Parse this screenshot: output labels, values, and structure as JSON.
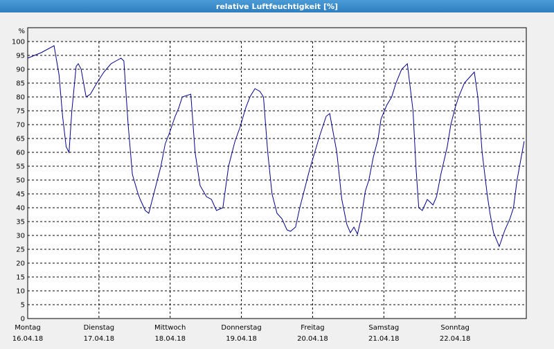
{
  "chart_data": {
    "type": "line",
    "title": "relative Luftfeuchtigkeit [%]",
    "y_label": "%",
    "xlim": [
      0,
      7
    ],
    "xticks": [
      {
        "value": 0,
        "label": "Montag",
        "date": "16.04.18"
      },
      {
        "value": 1,
        "label": "Dienstag",
        "date": "17.04.18"
      },
      {
        "value": 2,
        "label": "Mittwoch",
        "date": "18.04.18"
      },
      {
        "value": 3,
        "label": "Donnerstag",
        "date": "19.04.18"
      },
      {
        "value": 4,
        "label": "Freitag",
        "date": "20.04.18"
      },
      {
        "value": 5,
        "label": "Samstag",
        "date": "21.04.18"
      },
      {
        "value": 6,
        "label": "Sonntag",
        "date": "22.04.18"
      }
    ],
    "ylim": [
      0,
      100
    ],
    "yticks": [
      0,
      5,
      10,
      15,
      20,
      25,
      30,
      35,
      40,
      45,
      50,
      55,
      60,
      65,
      70,
      75,
      80,
      85,
      90,
      95,
      100
    ],
    "grid": true,
    "series": [
      {
        "color": "#00008b",
        "x": [
          0.0,
          0.19,
          0.37,
          0.44,
          0.49,
          0.54,
          0.58,
          0.62,
          0.68,
          0.71,
          0.75,
          0.82,
          0.88,
          0.97,
          1.07,
          1.17,
          1.31,
          1.35,
          1.41,
          1.47,
          1.55,
          1.58,
          1.65,
          1.7,
          1.77,
          1.87,
          1.93,
          1.99,
          2.07,
          2.12,
          2.17,
          2.29,
          2.35,
          2.42,
          2.51,
          2.58,
          2.65,
          2.74,
          2.82,
          2.91,
          2.98,
          3.06,
          3.12,
          3.19,
          3.26,
          3.31,
          3.37,
          3.43,
          3.5,
          3.57,
          3.64,
          3.69,
          3.76,
          3.82,
          3.89,
          3.96,
          4.03,
          4.1,
          4.19,
          4.24,
          4.34,
          4.41,
          4.48,
          4.53,
          4.58,
          4.63,
          4.68,
          4.74,
          4.79,
          4.85,
          4.92,
          4.96,
          5.04,
          5.11,
          5.17,
          5.25,
          5.33,
          5.41,
          5.45,
          5.49,
          5.54,
          5.61,
          5.69,
          5.74,
          5.8,
          5.89,
          5.94,
          6.0,
          6.05,
          6.13,
          6.2,
          6.27,
          6.32,
          6.38,
          6.45,
          6.49,
          6.54,
          6.62,
          6.7,
          6.77,
          6.82,
          6.87,
          6.92,
          6.97
        ],
        "values": [
          94,
          96,
          98.5,
          88,
          73,
          62,
          60,
          75,
          91,
          92,
          90,
          80,
          81,
          85,
          89,
          92,
          94,
          93,
          70,
          52,
          45,
          43,
          39,
          38,
          45,
          55,
          63,
          67,
          73,
          76,
          80,
          81,
          60,
          48,
          44,
          43,
          39,
          40,
          55,
          64,
          69,
          76,
          80,
          83,
          82,
          80,
          60,
          45,
          38,
          36,
          32,
          31.5,
          33,
          40,
          47,
          54,
          60,
          66,
          73,
          74,
          60,
          43,
          34,
          31,
          33,
          30.5,
          36,
          46,
          50,
          58,
          65,
          72,
          77,
          80,
          85,
          90,
          92,
          75,
          55,
          40,
          39,
          43,
          41,
          44,
          52,
          62,
          70,
          76,
          80,
          85,
          87,
          89,
          80,
          60,
          45,
          38,
          31,
          26,
          32,
          36,
          40,
          50,
          57,
          64
        ]
      }
    ]
  }
}
